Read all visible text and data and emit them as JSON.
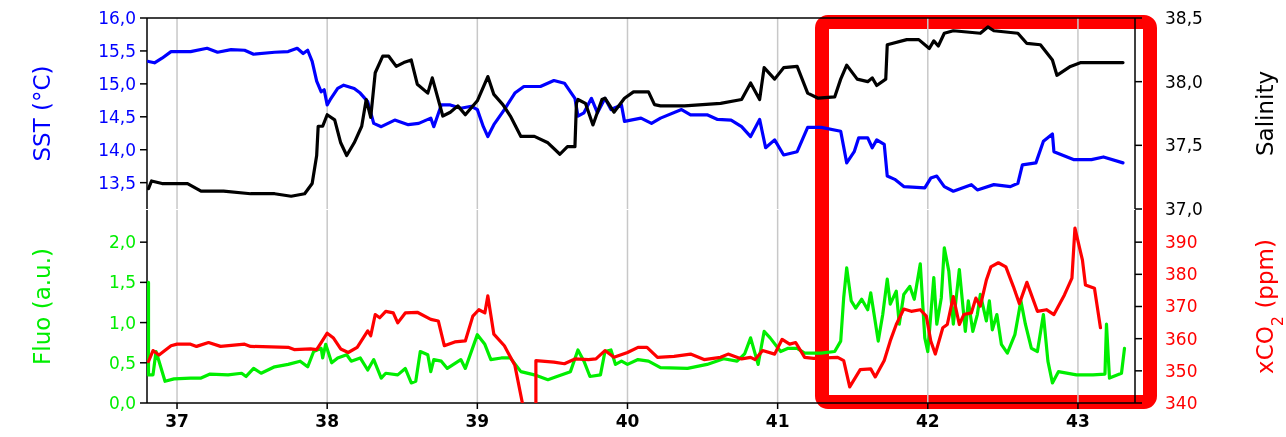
{
  "chart_data": [
    {
      "type": "line",
      "ylabel": "SST (°C)",
      "y2label": "Salinity",
      "xlim": [
        36.8,
        43.38
      ],
      "xticks": [
        37,
        38,
        39,
        40,
        41,
        42,
        43
      ],
      "ylim": [
        13.1,
        16.0
      ],
      "yticks": [
        {
          "value": 13.5,
          "label": "13,5"
        },
        {
          "value": 14,
          "label": "14,0"
        },
        {
          "value": 14.5,
          "label": "14,5"
        },
        {
          "value": 15,
          "label": "15,0"
        },
        {
          "value": 15.5,
          "label": "15,5"
        },
        {
          "value": 16,
          "label": "16,0"
        }
      ],
      "y2lim": [
        37.0,
        38.5
      ],
      "y2ticks": [
        {
          "value": 37,
          "label": "37,0"
        },
        {
          "value": 37.5,
          "label": "37,5"
        },
        {
          "value": 38,
          "label": "38,0"
        },
        {
          "value": 38.5,
          "label": "38,5"
        }
      ],
      "grid": "x",
      "tick_labels": "y",
      "series": [
        {
          "color": "#0000ff",
          "x": [
            36.81,
            36.85,
            36.9,
            36.96,
            37.09,
            37.2,
            37.27,
            37.36,
            37.45,
            37.51,
            37.65,
            37.74,
            37.8,
            37.84,
            37.87,
            37.9,
            37.93,
            37.96,
            37.98,
            38.0,
            38.02,
            38.07,
            38.11,
            38.18,
            38.22,
            38.27,
            38.31,
            38.36,
            38.45,
            38.54,
            38.61,
            38.69,
            38.71,
            38.76,
            38.82,
            38.89,
            38.96,
            39.0,
            39.04,
            39.07,
            39.11,
            39.18,
            39.25,
            39.31,
            39.42,
            39.51,
            39.58,
            39.65,
            39.67,
            39.71,
            39.76,
            39.8,
            39.85,
            39.89,
            39.96,
            39.98,
            40.09,
            40.16,
            40.22,
            40.36,
            40.42,
            40.53,
            40.6,
            40.69,
            40.76,
            40.82,
            40.88,
            40.92,
            40.98,
            41.04,
            41.13,
            41.2,
            41.29,
            41.42,
            41.46,
            41.51,
            41.54,
            41.6,
            41.63,
            41.66,
            41.71,
            41.73,
            41.78,
            41.84,
            41.98,
            42.02,
            42.06,
            42.11,
            42.17,
            42.29,
            42.33,
            42.44,
            42.55,
            42.6,
            42.63,
            42.72,
            42.77,
            42.83,
            42.84,
            42.97,
            43.09,
            43.17,
            43.3
          ],
          "values": [
            15.34,
            15.32,
            15.39,
            15.49,
            15.49,
            15.54,
            15.48,
            15.52,
            15.51,
            15.45,
            15.48,
            15.49,
            15.54,
            15.46,
            15.51,
            15.34,
            15.04,
            14.88,
            14.91,
            14.68,
            14.76,
            14.93,
            14.98,
            14.93,
            14.86,
            14.73,
            14.4,
            14.35,
            14.45,
            14.38,
            14.4,
            14.48,
            14.35,
            14.68,
            14.68,
            14.63,
            14.66,
            14.61,
            14.35,
            14.2,
            14.38,
            14.61,
            14.86,
            14.96,
            14.96,
            15.05,
            15.01,
            14.78,
            14.51,
            14.56,
            14.78,
            14.56,
            14.78,
            14.61,
            14.68,
            14.43,
            14.48,
            14.4,
            14.48,
            14.61,
            14.53,
            14.53,
            14.46,
            14.45,
            14.35,
            14.2,
            14.46,
            14.03,
            14.15,
            13.92,
            13.97,
            14.34,
            14.34,
            14.28,
            13.8,
            13.97,
            14.18,
            14.18,
            14.03,
            14.15,
            14.08,
            13.6,
            13.55,
            13.44,
            13.42,
            13.57,
            13.6,
            13.44,
            13.37,
            13.47,
            13.39,
            13.47,
            13.44,
            13.49,
            13.77,
            13.8,
            14.13,
            14.24,
            13.97,
            13.85,
            13.85,
            13.89,
            13.8
          ]
        },
        {
          "color": "#000000",
          "axis": "y2",
          "x": [
            36.81,
            36.83,
            36.9,
            37.07,
            37.16,
            37.31,
            37.49,
            37.65,
            37.76,
            37.85,
            37.9,
            37.93,
            37.94,
            37.97,
            38.0,
            38.05,
            38.09,
            38.13,
            38.18,
            38.23,
            38.26,
            38.29,
            38.32,
            38.37,
            38.41,
            38.46,
            38.51,
            38.56,
            38.6,
            38.67,
            38.7,
            38.77,
            38.82,
            38.87,
            38.92,
            39.0,
            39.07,
            39.11,
            39.17,
            39.22,
            39.29,
            39.38,
            39.47,
            39.55,
            39.6,
            39.65,
            39.66,
            39.67,
            39.72,
            39.77,
            39.83,
            39.85,
            39.91,
            39.98,
            40.04,
            40.14,
            40.18,
            40.22,
            40.38,
            40.62,
            40.76,
            40.82,
            40.88,
            40.91,
            40.98,
            41.04,
            41.13,
            41.2,
            41.27,
            41.38,
            41.42,
            41.46,
            41.53,
            41.6,
            41.63,
            41.66,
            41.72,
            41.73,
            41.86,
            41.94,
            42.01,
            42.04,
            42.07,
            42.11,
            42.17,
            42.35,
            42.4,
            42.44,
            42.6,
            42.66,
            42.75,
            42.83,
            42.86,
            42.95,
            43.02,
            43.15,
            43.3
          ],
          "values": [
            37.16,
            37.22,
            37.2,
            37.2,
            37.14,
            37.14,
            37.12,
            37.12,
            37.1,
            37.12,
            37.2,
            37.42,
            37.65,
            37.65,
            37.74,
            37.7,
            37.52,
            37.42,
            37.52,
            37.65,
            37.86,
            37.72,
            38.07,
            38.2,
            38.2,
            38.12,
            38.15,
            38.17,
            37.98,
            37.91,
            38.03,
            37.73,
            37.76,
            37.81,
            37.74,
            37.85,
            38.04,
            37.9,
            37.82,
            37.73,
            37.57,
            37.57,
            37.52,
            37.43,
            37.49,
            37.49,
            37.83,
            37.86,
            37.83,
            37.66,
            37.86,
            37.87,
            37.76,
            37.87,
            37.92,
            37.92,
            37.82,
            37.81,
            37.81,
            37.83,
            37.86,
            37.99,
            37.86,
            38.11,
            38.02,
            38.11,
            38.12,
            37.91,
            37.87,
            37.88,
            38.02,
            38.13,
            38.02,
            38.0,
            38.03,
            37.97,
            38.02,
            38.29,
            38.33,
            38.33,
            38.26,
            38.32,
            38.28,
            38.38,
            38.4,
            38.38,
            38.43,
            38.4,
            38.38,
            38.3,
            38.29,
            38.17,
            38.05,
            38.12,
            38.15,
            38.15,
            38.15
          ]
        }
      ]
    },
    {
      "type": "line",
      "ylabel": "Fluo (a.u.)",
      "y2label": "xCO$_{2}$ (ppm)",
      "xlim": [
        36.8,
        43.38
      ],
      "xticks": [
        37,
        38,
        39,
        40,
        41,
        42,
        43
      ],
      "ylim": [
        0,
        2.4
      ],
      "yticks": [
        {
          "value": 0,
          "label": "0,0"
        },
        {
          "value": 0.5,
          "label": "0,5"
        },
        {
          "value": 1,
          "label": "1,0"
        },
        {
          "value": 1.5,
          "label": "1,5"
        },
        {
          "value": 2,
          "label": "2,0"
        }
      ],
      "y2lim": [
        340,
        400
      ],
      "y2ticks": [
        340,
        350,
        360,
        370,
        380,
        390
      ],
      "grid": "x",
      "series": [
        {
          "color": "#00ee00",
          "x": [
            36.81,
            36.81,
            36.84,
            36.86,
            36.88,
            36.92,
            36.98,
            37.09,
            37.16,
            37.22,
            37.34,
            37.43,
            37.46,
            37.51,
            37.56,
            37.65,
            37.74,
            37.82,
            37.87,
            37.91,
            37.96,
            37.97,
            37.99,
            38.03,
            38.07,
            38.13,
            38.16,
            38.22,
            38.27,
            38.31,
            38.36,
            38.39,
            38.47,
            38.52,
            38.56,
            38.59,
            38.62,
            38.67,
            38.69,
            38.71,
            38.76,
            38.8,
            38.89,
            38.92,
            39.0,
            39.05,
            39.09,
            39.16,
            39.22,
            39.29,
            39.38,
            39.47,
            39.53,
            39.62,
            39.67,
            39.71,
            39.75,
            39.82,
            39.85,
            39.89,
            39.92,
            39.96,
            40.0,
            40.07,
            40.14,
            40.22,
            40.4,
            40.53,
            40.64,
            40.73,
            40.78,
            40.82,
            40.87,
            40.91,
            40.95,
            41.02,
            41.07,
            41.13,
            41.18,
            41.29,
            41.38,
            41.42,
            41.44,
            41.46,
            41.49,
            41.52,
            41.56,
            41.6,
            41.62,
            41.67,
            41.7,
            41.73,
            41.75,
            41.79,
            41.81,
            41.84,
            41.88,
            41.91,
            41.95,
            41.98,
            42.0,
            42.04,
            42.06,
            42.09,
            42.11,
            42.14,
            42.17,
            42.21,
            42.25,
            42.27,
            42.3,
            42.33,
            42.35,
            42.39,
            42.41,
            42.43,
            42.46,
            42.49,
            42.53,
            42.58,
            42.62,
            42.65,
            42.69,
            42.73,
            42.77,
            42.8,
            42.83,
            42.87,
            42.99,
            43.1,
            43.18,
            43.19,
            43.21,
            43.29,
            43.31
          ],
          "values": [
            1.5,
            0.35,
            0.35,
            0.64,
            0.52,
            0.27,
            0.3,
            0.31,
            0.31,
            0.36,
            0.35,
            0.37,
            0.33,
            0.43,
            0.37,
            0.45,
            0.48,
            0.52,
            0.45,
            0.64,
            0.68,
            0.56,
            0.73,
            0.5,
            0.56,
            0.6,
            0.52,
            0.56,
            0.41,
            0.54,
            0.31,
            0.37,
            0.35,
            0.43,
            0.25,
            0.27,
            0.64,
            0.6,
            0.39,
            0.54,
            0.52,
            0.43,
            0.54,
            0.43,
            0.85,
            0.73,
            0.54,
            0.56,
            0.56,
            0.39,
            0.35,
            0.29,
            0.33,
            0.39,
            0.66,
            0.52,
            0.33,
            0.35,
            0.64,
            0.66,
            0.48,
            0.52,
            0.48,
            0.54,
            0.52,
            0.44,
            0.43,
            0.48,
            0.55,
            0.52,
            0.61,
            0.81,
            0.48,
            0.89,
            0.81,
            0.64,
            0.68,
            0.68,
            0.62,
            0.62,
            0.64,
            0.77,
            1.31,
            1.68,
            1.27,
            1.18,
            1.29,
            1.16,
            1.37,
            0.77,
            1.1,
            1.54,
            1.23,
            1.39,
            0.98,
            1.35,
            1.45,
            1.29,
            1.73,
            0.81,
            0.64,
            1.56,
            0.98,
            1.31,
            1.93,
            1.64,
            0.98,
            1.66,
            0.89,
            1.27,
            0.89,
            1.1,
            1.35,
            1.02,
            1.27,
            0.91,
            1.1,
            0.73,
            0.62,
            0.85,
            1.27,
            0.98,
            0.68,
            0.64,
            1.1,
            0.52,
            0.25,
            0.39,
            0.35,
            0.35,
            0.36,
            0.98,
            0.31,
            0.37,
            0.68
          ]
        },
        {
          "color": "#ff0000",
          "axis": "y2",
          "x": [
            36.81,
            36.84,
            36.88,
            36.96,
            37.0,
            37.09,
            37.13,
            37.21,
            37.29,
            37.45,
            37.49,
            37.74,
            37.78,
            37.89,
            37.93,
            37.96,
            38.0,
            38.04,
            38.09,
            38.14,
            38.2,
            38.27,
            38.29,
            38.32,
            38.35,
            38.39,
            38.44,
            38.47,
            38.52,
            38.6,
            38.69,
            38.74,
            38.78,
            38.85,
            38.92,
            38.97,
            39.01,
            39.05,
            39.07,
            39.11,
            39.18,
            39.25,
            39.3,
            39.34,
            39.39,
            39.39,
            39.51,
            39.58,
            39.65,
            39.74,
            39.79,
            39.85,
            39.91,
            40.0,
            40.07,
            40.13,
            40.2,
            40.31,
            40.42,
            40.51,
            40.62,
            40.67,
            40.76,
            40.82,
            40.85,
            40.9,
            40.98,
            41.03,
            41.08,
            41.12,
            41.18,
            41.24,
            41.4,
            41.44,
            41.48,
            41.55,
            41.62,
            41.65,
            41.71,
            41.75,
            41.79,
            41.84,
            41.89,
            41.95,
            41.99,
            42.02,
            42.05,
            42.1,
            42.13,
            42.17,
            42.21,
            42.24,
            42.29,
            42.32,
            42.35,
            42.39,
            42.42,
            42.47,
            42.52,
            42.57,
            42.61,
            42.66,
            42.73,
            42.79,
            42.84,
            42.91,
            42.96,
            42.98,
            43.03,
            43.05,
            43.11,
            43.15
          ],
          "values": [
            352.9,
            356.3,
            354.9,
            357.8,
            358.3,
            358.3,
            357.6,
            358.8,
            357.6,
            358.3,
            357.6,
            357.3,
            356.6,
            356.8,
            356.6,
            358.8,
            361.7,
            360.3,
            356.8,
            355.7,
            357.3,
            362.4,
            360.9,
            367.5,
            366.5,
            368.5,
            368.0,
            364.9,
            368.0,
            368.2,
            366.0,
            365.5,
            357.8,
            359.0,
            359.3,
            367.0,
            369.0,
            368.0,
            373.3,
            361.4,
            357.8,
            351.7,
            340,
            null,
            340,
            353.2,
            352.7,
            352.2,
            353.7,
            353.5,
            353.7,
            356.3,
            354.2,
            355.7,
            357.3,
            357.3,
            354.2,
            354.5,
            355.2,
            353.5,
            354.2,
            355.2,
            353.7,
            354.2,
            353.5,
            356.3,
            355.2,
            359.8,
            358.3,
            358.8,
            354.2,
            353.9,
            354.2,
            353.2,
            345.0,
            350.4,
            350.6,
            348.1,
            353.2,
            359.3,
            364.4,
            369.2,
            368.5,
            369.0,
            367.0,
            359.3,
            355.2,
            363.4,
            364.4,
            373.1,
            364.4,
            367.5,
            368.0,
            372.6,
            370.1,
            378.2,
            382.3,
            383.6,
            382.3,
            376.2,
            370.9,
            377.5,
            368.5,
            369.0,
            367.5,
            373.6,
            378.8,
            394.4,
            384.4,
            376.7,
            375.7,
            363.4
          ]
        }
      ]
    }
  ]
}
